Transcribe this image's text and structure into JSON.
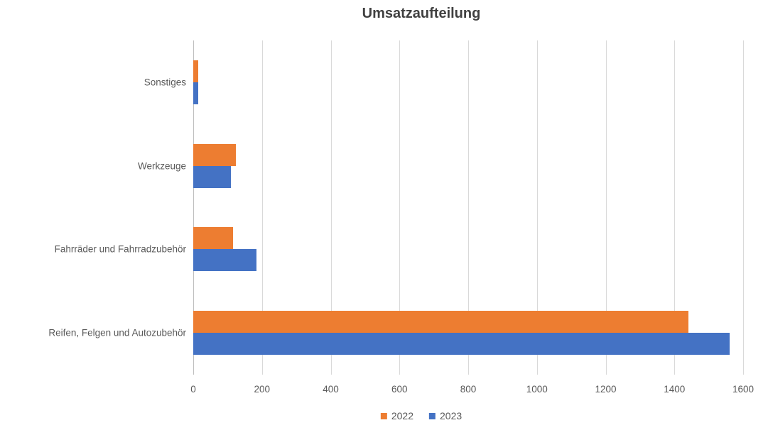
{
  "title": "Umsatzaufteilung",
  "chart_data": {
    "type": "bar",
    "orientation": "horizontal",
    "title": "Umsatzaufteilung",
    "categories": [
      "Sonstiges",
      "Werkzeuge",
      "Fahrräder und Fahrradzubehör",
      "Reifen, Felgen und Autozubehör"
    ],
    "series": [
      {
        "name": "2022",
        "color": "#ED7D31",
        "values": [
          15,
          125,
          115,
          1440
        ]
      },
      {
        "name": "2023",
        "color": "#4472C4",
        "values": [
          15,
          110,
          185,
          1560
        ]
      }
    ],
    "xlim": [
      0,
      1600
    ],
    "xticks": [
      0,
      200,
      400,
      600,
      800,
      1000,
      1200,
      1400,
      1600
    ],
    "xlabel": "",
    "ylabel": "",
    "grid": true,
    "legend_position": "bottom",
    "gridline_color": "#D9D9D9",
    "text_color": "#595959",
    "title_color": "#404040",
    "background_color": "#FFFFFF"
  }
}
